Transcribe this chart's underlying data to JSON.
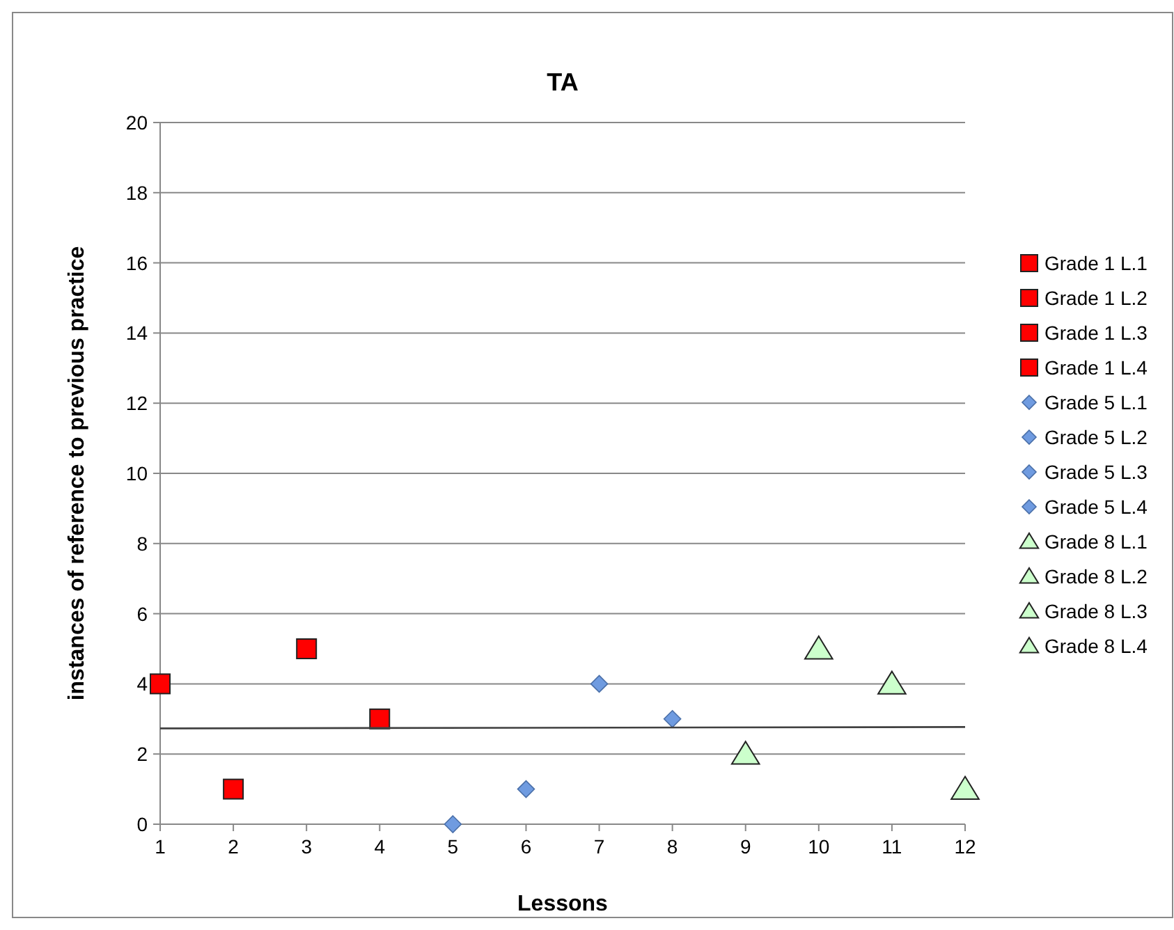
{
  "chart_data": {
    "type": "scatter",
    "title": "TA",
    "xlabel": "Lessons",
    "ylabel": "instances of reference to previous practice",
    "xlim": [
      1,
      12
    ],
    "xticks": [
      1,
      2,
      3,
      4,
      5,
      6,
      7,
      8,
      9,
      10,
      11,
      12
    ],
    "ylim": [
      0,
      20
    ],
    "yticks": [
      0,
      2,
      4,
      6,
      8,
      10,
      12,
      14,
      16,
      18,
      20
    ],
    "grid": "y",
    "legend": "right",
    "series": [
      {
        "name": "Grade 1 L.1",
        "color": "#ff0000",
        "marker": "square",
        "x": [
          1
        ],
        "values": [
          4
        ]
      },
      {
        "name": "Grade 1 L.2",
        "color": "#ff0000",
        "marker": "square",
        "x": [
          2
        ],
        "values": [
          1
        ]
      },
      {
        "name": "Grade 1 L.3",
        "color": "#ff0000",
        "marker": "square",
        "x": [
          3
        ],
        "values": [
          5
        ]
      },
      {
        "name": "Grade 1 L.4",
        "color": "#ff0000",
        "marker": "square",
        "x": [
          4
        ],
        "values": [
          3
        ]
      },
      {
        "name": "Grade 5 L.1",
        "color": "#6f9be0",
        "marker": "diamond",
        "x": [
          5
        ],
        "values": [
          0
        ]
      },
      {
        "name": "Grade 5 L.2",
        "color": "#6f9be0",
        "marker": "diamond",
        "x": [
          6
        ],
        "values": [
          1
        ]
      },
      {
        "name": "Grade 5 L.3",
        "color": "#6f9be0",
        "marker": "diamond",
        "x": [
          7
        ],
        "values": [
          4
        ]
      },
      {
        "name": "Grade 5 L.4",
        "color": "#6f9be0",
        "marker": "diamond",
        "x": [
          8
        ],
        "values": [
          3
        ]
      },
      {
        "name": "Grade 8 L.1",
        "color": "#ccffcc",
        "marker": "triangle",
        "x": [
          9
        ],
        "values": [
          2
        ]
      },
      {
        "name": "Grade 8 L.2",
        "color": "#ccffcc",
        "marker": "triangle",
        "x": [
          10
        ],
        "values": [
          5
        ]
      },
      {
        "name": "Grade 8 L.3",
        "color": "#ccffcc",
        "marker": "triangle",
        "x": [
          11
        ],
        "values": [
          4
        ]
      },
      {
        "name": "Grade 8 L.4",
        "color": "#ccffcc",
        "marker": "triangle",
        "x": [
          12
        ],
        "values": [
          1
        ]
      },
      {
        "type": "line",
        "color": "#404040",
        "marker": "none",
        "x": [
          1,
          12
        ],
        "values": [
          2.73,
          2.77
        ]
      }
    ]
  }
}
